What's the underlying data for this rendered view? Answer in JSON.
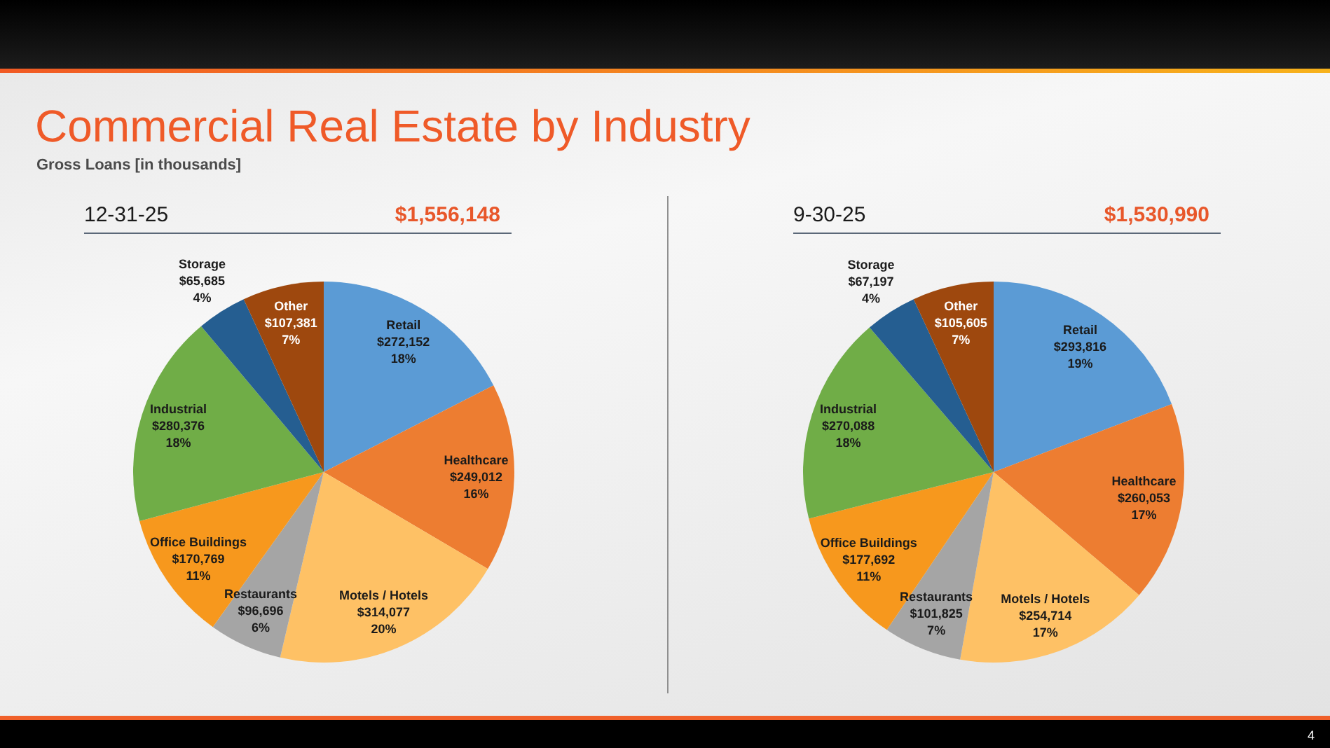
{
  "chart_data": [
    {
      "type": "other",
      "title": "Commercial Real Estate by Industry",
      "subtitle": "Gross Loans [in thousands]",
      "annotations": [
        "4"
      ]
    },
    {
      "type": "pie",
      "title": "12-31-25",
      "subtitle": "$1,556,148",
      "categories": [
        "Retail",
        "Healthcare",
        "Motels / Hotels",
        "Restaurants",
        "Office Buildings",
        "Industrial",
        "Storage",
        "Other"
      ],
      "values": [
        272152,
        249012,
        314077,
        96696,
        170769,
        280376,
        65685,
        107381
      ],
      "colors": [
        "#5b9bd5",
        "#ed7d31",
        "#fec165",
        "#a5a5a5",
        "#f7981d",
        "#70ad47",
        "#255e91",
        "#9e480e"
      ],
      "value_labels": [
        "$272,152\n18%",
        "$249,012\n16%",
        "$314,077\n20%",
        "$96,696\n6%",
        "$170,769\n11%",
        "$280,376\n18%",
        "$65,685\n4%",
        "$107,381\n7%"
      ]
    },
    {
      "type": "pie",
      "title": "9-30-25",
      "subtitle": "$1,530,990",
      "categories": [
        "Retail",
        "Healthcare",
        "Motels / Hotels",
        "Restaurants",
        "Office Buildings",
        "Industrial",
        "Storage",
        "Other"
      ],
      "values": [
        293816,
        260053,
        254714,
        101825,
        177692,
        270088,
        67197,
        105605
      ],
      "colors": [
        "#5b9bd5",
        "#ed7d31",
        "#fec165",
        "#a5a5a5",
        "#f7981d",
        "#70ad47",
        "#255e91",
        "#9e480e"
      ],
      "value_labels": [
        "$293,816\n19%",
        "$260,053\n17%",
        "$254,714\n17%",
        "$101,825\n7%",
        "$177,692\n11%",
        "$270,088\n18%",
        "$67,197\n4%",
        "$105,605\n7%"
      ]
    }
  ]
}
